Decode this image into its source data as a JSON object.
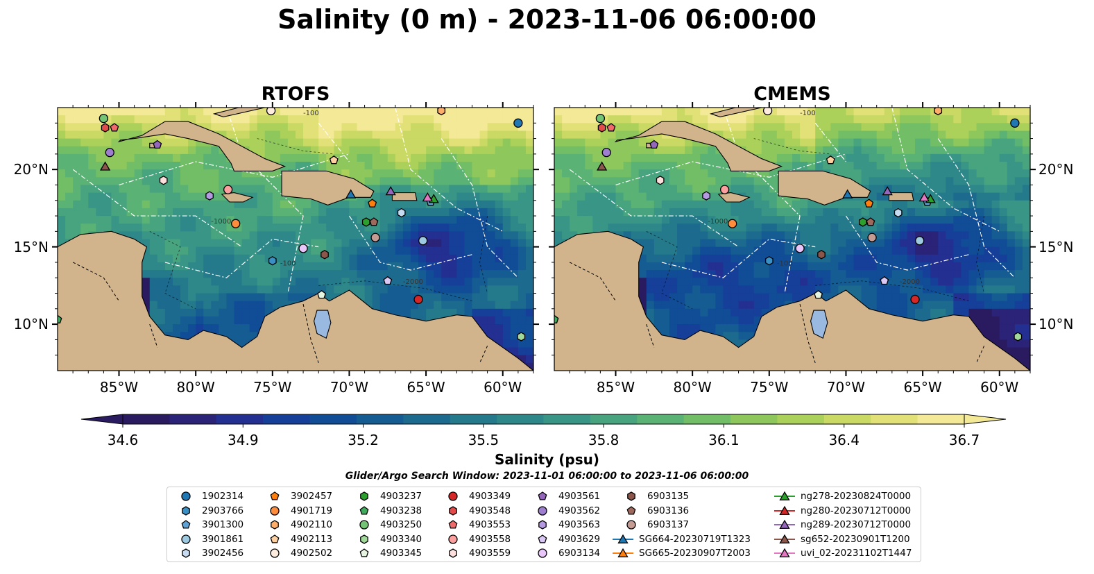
{
  "title": "Salinity (0 m) - 2023-11-06 06:00:00",
  "panels": [
    {
      "title": "RTOFS",
      "variant": "rtofs"
    },
    {
      "title": "CMEMS",
      "variant": "cmems"
    }
  ],
  "longitude_ticks": [
    "85°W",
    "80°W",
    "75°W",
    "70°W",
    "65°W",
    "60°W"
  ],
  "latitude_ticks": [
    "20°N",
    "15°N",
    "10°N"
  ],
  "map_extent": {
    "lon_min": -89,
    "lon_max": -58,
    "lat_min": 7,
    "lat_max": 24
  },
  "contour_labels": [
    "-100",
    "-1000",
    "-1000",
    "-2000",
    "-1000",
    "-100",
    "-1000",
    "-100",
    "-1000"
  ],
  "colorbar": {
    "label": "Salinity (psu)",
    "ticks": [
      "34.6",
      "34.9",
      "35.2",
      "35.5",
      "35.8",
      "36.1",
      "36.4",
      "36.7"
    ],
    "min": 34.6,
    "max": 36.7,
    "extend": "both"
  },
  "search_window": "Glider/Argo Search Window: 2023-11-01 06:00:00 to 2023-11-06 06:00:00",
  "colors": {
    "land": "#d2b48c",
    "lake": "#99b9e0",
    "haline": [
      "#2a1b60",
      "#2b2377",
      "#232f91",
      "#163f99",
      "#104d96",
      "#155c92",
      "#1c6a8e",
      "#247a8b",
      "#2e8889",
      "#399686",
      "#47a47f",
      "#5ab274",
      "#72be67",
      "#8ec85c",
      "#acd15a",
      "#c9d964",
      "#e2e178",
      "#f4e996"
    ]
  },
  "legend": [
    {
      "label": "1902314",
      "marker": "circle",
      "color": "#1f77b4"
    },
    {
      "label": "2903766",
      "marker": "hexagon",
      "color": "#3a8fc4"
    },
    {
      "label": "3901300",
      "marker": "pentagon",
      "color": "#5fa3d6"
    },
    {
      "label": "3901861",
      "marker": "circle",
      "color": "#9ecae1"
    },
    {
      "label": "3902456",
      "marker": "hexagon",
      "color": "#c6dbef"
    },
    {
      "label": "3902457",
      "marker": "pentagon",
      "color": "#ff7f0e"
    },
    {
      "label": "4901719",
      "marker": "circle",
      "color": "#fd8d3c"
    },
    {
      "label": "4902110",
      "marker": "hexagon",
      "color": "#fdae6b"
    },
    {
      "label": "4902113",
      "marker": "pentagon",
      "color": "#fdd0a2"
    },
    {
      "label": "4902502",
      "marker": "circle",
      "color": "#feedde"
    },
    {
      "label": "4903237",
      "marker": "hexagon",
      "color": "#2ca02c"
    },
    {
      "label": "4903238",
      "marker": "pentagon",
      "color": "#41ab5d"
    },
    {
      "label": "4903250",
      "marker": "circle",
      "color": "#74c476"
    },
    {
      "label": "4903340",
      "marker": "hexagon",
      "color": "#a1d99b"
    },
    {
      "label": "4903345",
      "marker": "pentagon",
      "color": "#e5f5e0"
    },
    {
      "label": "4903349",
      "marker": "circle",
      "color": "#d62728"
    },
    {
      "label": "4903548",
      "marker": "hexagon",
      "color": "#e34a4a"
    },
    {
      "label": "4903553",
      "marker": "pentagon",
      "color": "#ef6a6a"
    },
    {
      "label": "4903558",
      "marker": "circle",
      "color": "#fc9f9f"
    },
    {
      "label": "4903559",
      "marker": "hexagon",
      "color": "#fde0dd"
    },
    {
      "label": "4903561",
      "marker": "pentagon",
      "color": "#9467bd"
    },
    {
      "label": "4903562",
      "marker": "circle",
      "color": "#9e7fcf"
    },
    {
      "label": "4903563",
      "marker": "hexagon",
      "color": "#b49ae0"
    },
    {
      "label": "4903629",
      "marker": "pentagon",
      "color": "#dac8f5"
    },
    {
      "label": "6903134",
      "marker": "circle",
      "color": "#e8c6f9"
    },
    {
      "label": "6903135",
      "marker": "hexagon",
      "color": "#8c564b"
    },
    {
      "label": "6903136",
      "marker": "pentagon",
      "color": "#a0695e"
    },
    {
      "label": "6903137",
      "marker": "circle",
      "color": "#c49c94"
    },
    {
      "label": "SG664-20230719T1323",
      "marker": "triangle",
      "color": "#1f77b4",
      "line": true
    },
    {
      "label": "SG665-20230907T2003",
      "marker": "triangle",
      "color": "#ff7f0e",
      "line": true
    },
    {
      "label": "ng278-20230824T0000",
      "marker": "triangle",
      "color": "#2ca02c",
      "line": true
    },
    {
      "label": "ng280-20230712T0000",
      "marker": "triangle",
      "color": "#d62728",
      "line": true
    },
    {
      "label": "ng289-20230712T0000",
      "marker": "triangle",
      "color": "#9467bd",
      "line": true
    },
    {
      "label": "sg652-20230901T1200",
      "marker": "triangle",
      "color": "#8c564b",
      "line": true
    },
    {
      "label": "uvi_02-20231102T1447",
      "marker": "triangle",
      "color": "#e377c2",
      "line": true
    }
  ],
  "observations": [
    {
      "id": "1902314",
      "lon": -59.0,
      "lat": 23.0
    },
    {
      "id": "2903766",
      "lon": -75.0,
      "lat": 14.1
    },
    {
      "id": "3901300",
      "lon": -64.7,
      "lat": 17.9
    },
    {
      "id": "3901861",
      "lon": -65.2,
      "lat": 15.4
    },
    {
      "id": "3902456",
      "lon": -66.6,
      "lat": 17.2
    },
    {
      "id": "3902457",
      "lon": -68.5,
      "lat": 17.8
    },
    {
      "id": "4901719",
      "lon": -77.4,
      "lat": 16.5
    },
    {
      "id": "4902110",
      "lon": -64.0,
      "lat": 23.8
    },
    {
      "id": "4902113",
      "lon": -71.0,
      "lat": 20.6
    },
    {
      "id": "4902502",
      "lon": -75.1,
      "lat": 23.8
    },
    {
      "id": "4903237",
      "lon": -68.9,
      "lat": 16.6
    },
    {
      "id": "4903238",
      "lon": -89.0,
      "lat": 10.3
    },
    {
      "id": "4903250",
      "lon": -86.0,
      "lat": 23.3
    },
    {
      "id": "4903340",
      "lon": -58.8,
      "lat": 9.2
    },
    {
      "id": "4903345",
      "lon": -71.8,
      "lat": 11.9
    },
    {
      "id": "4903349",
      "lon": -65.5,
      "lat": 11.6
    },
    {
      "id": "4903548",
      "lon": -85.9,
      "lat": 22.7
    },
    {
      "id": "4903553",
      "lon": -85.3,
      "lat": 22.7
    },
    {
      "id": "4903558",
      "lon": -77.9,
      "lat": 18.7
    },
    {
      "id": "4903559",
      "lon": -82.1,
      "lat": 19.3
    },
    {
      "id": "4903561",
      "lon": -82.5,
      "lat": 21.6
    },
    {
      "id": "4903562",
      "lon": -85.6,
      "lat": 21.1
    },
    {
      "id": "4903563",
      "lon": -79.1,
      "lat": 18.3
    },
    {
      "id": "4903629",
      "lon": -67.5,
      "lat": 12.8
    },
    {
      "id": "6903134",
      "lon": -73.0,
      "lat": 14.9
    },
    {
      "id": "6903135",
      "lon": -71.6,
      "lat": 14.5
    },
    {
      "id": "6903136",
      "lon": -68.4,
      "lat": 16.6
    },
    {
      "id": "6903137",
      "lon": -68.3,
      "lat": 15.6
    },
    {
      "id": "SG664-20230719T1323",
      "lon": -69.9,
      "lat": 18.4
    },
    {
      "id": "ng278-20230824T0000",
      "lon": -64.5,
      "lat": 18.1
    },
    {
      "id": "ng289-20230712T0000",
      "lon": -67.3,
      "lat": 18.6
    },
    {
      "id": "sg652-20230901T1200",
      "lon": -85.9,
      "lat": 20.2
    },
    {
      "id": "uvi_02-20231102T1447",
      "lon": -64.9,
      "lat": 18.2
    }
  ]
}
